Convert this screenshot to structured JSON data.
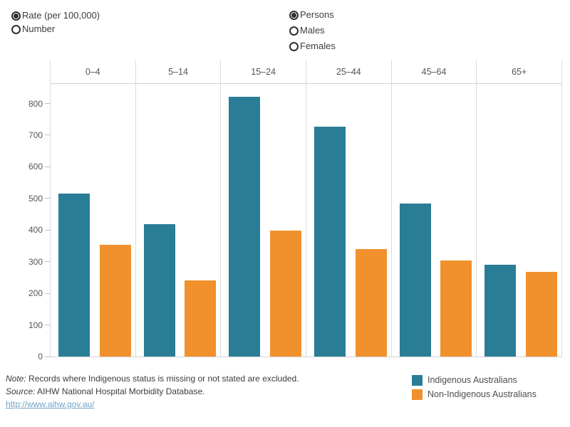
{
  "controls": {
    "measure_group": {
      "options": [
        {
          "label": "Rate (per 100,000)",
          "selected": true
        },
        {
          "label": "Number",
          "selected": false
        }
      ]
    },
    "sex_group": {
      "options": [
        {
          "label": "Persons",
          "selected": true
        },
        {
          "label": "Males",
          "selected": false
        },
        {
          "label": "Females",
          "selected": false
        }
      ]
    }
  },
  "chart_data": {
    "type": "bar",
    "title": "",
    "categories": [
      "0–4",
      "5–14",
      "15–24",
      "25–44",
      "45–64",
      "65+"
    ],
    "series": [
      {
        "name": "Indigenous Australians",
        "color": "#2a7d96",
        "values": [
          516,
          419,
          822,
          727,
          483,
          290
        ]
      },
      {
        "name": "Non-Indigenous Australians",
        "color": "#f0912d",
        "values": [
          353,
          241,
          398,
          340,
          303,
          267
        ]
      }
    ],
    "xlabel": "",
    "ylabel": "Rate (per 100,000)",
    "yticks": [
      0,
      100,
      200,
      300,
      400,
      500,
      600,
      700,
      800
    ],
    "ylim": [
      0,
      862
    ],
    "grid": "vertical category separators only",
    "legend_position": "bottom-right"
  },
  "legend": {
    "items": [
      {
        "label": "Indigenous Australians",
        "color": "#2a7d96"
      },
      {
        "label": "Non-Indigenous Australians",
        "color": "#f0912d"
      }
    ]
  },
  "notes": {
    "note_prefix": "Note:",
    "note_text": " Records where Indigenous status is missing or not stated are excluded.",
    "source_prefix": "Source:",
    "source_text": " AIHW National Hospital Morbidity Database.",
    "link": "http://www.aihw.gov.au/",
    "link_color": "#71a2c6"
  }
}
